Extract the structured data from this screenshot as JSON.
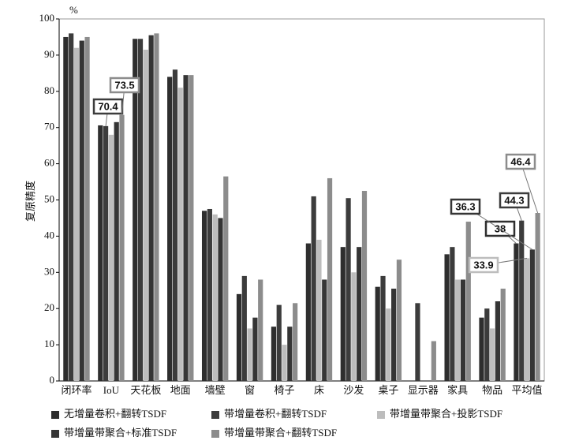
{
  "chart_data": {
    "type": "bar",
    "y_label": "复原精度",
    "y_unit": "%",
    "categories": [
      "闭环率",
      "IoU",
      "天花板",
      "地面",
      "墙壁",
      "窗",
      "椅子",
      "床",
      "沙发",
      "桌子",
      "显示器",
      "家具",
      "物品",
      "平均值"
    ],
    "ylim": [
      0,
      100
    ],
    "yticks": [
      0,
      10,
      20,
      30,
      40,
      50,
      60,
      70,
      80,
      90,
      100
    ],
    "grid": false,
    "series": [
      {
        "name": "无增量卷积+翻转TSDF",
        "color": "#2e2e2e",
        "values": [
          95,
          70.6,
          94.5,
          84,
          47,
          24,
          15,
          38,
          37,
          26,
          null,
          35,
          17.5,
          38
        ],
        "value_labels": [
          null,
          null,
          null,
          null,
          null,
          null,
          null,
          null,
          null,
          null,
          null,
          null,
          null,
          "38"
        ]
      },
      {
        "name": "带增量卷积+翻转TSDF",
        "color": "#3c3c3c",
        "values": [
          96,
          70.4,
          94.5,
          86,
          47.5,
          29,
          21,
          51,
          50.5,
          29,
          21.5,
          37,
          20,
          44.3
        ],
        "value_labels": [
          null,
          "70.4",
          null,
          null,
          null,
          null,
          null,
          null,
          null,
          null,
          null,
          null,
          null,
          "44.3"
        ]
      },
      {
        "name": "带增量带聚合+投影TSDF",
        "color": "#bdbdbd",
        "values": [
          92,
          68,
          91.5,
          81,
          46,
          14.5,
          10,
          39,
          30,
          20,
          null,
          28,
          14.5,
          33.9
        ],
        "value_labels": [
          null,
          null,
          null,
          null,
          null,
          null,
          null,
          null,
          null,
          null,
          null,
          null,
          null,
          "33.9"
        ]
      },
      {
        "name": "带增量带聚合+标准TSDF",
        "color": "#353535",
        "values": [
          94,
          71.5,
          95.5,
          84.5,
          45,
          17.5,
          15,
          28,
          37,
          25.5,
          null,
          28,
          22,
          36.3
        ],
        "value_labels": [
          null,
          null,
          null,
          null,
          null,
          null,
          null,
          null,
          null,
          null,
          null,
          null,
          null,
          "36.3"
        ]
      },
      {
        "name": "带增量带聚合+翻转TSDF",
        "color": "#8c8c8c",
        "values": [
          95,
          73.5,
          96,
          84.5,
          56.5,
          28,
          21.5,
          56,
          52.5,
          33.5,
          11,
          44,
          25.5,
          46.4
        ],
        "value_labels": [
          null,
          "73.5",
          null,
          null,
          null,
          null,
          null,
          null,
          null,
          null,
          null,
          null,
          null,
          "46.4"
        ]
      }
    ]
  }
}
